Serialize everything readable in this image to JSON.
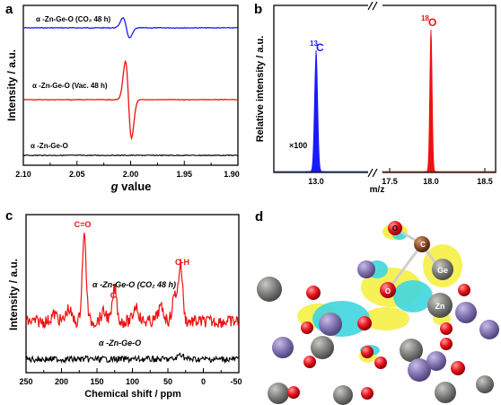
{
  "panels": {
    "a": {
      "letter": "a",
      "ylabel": "Intensity / a.u.",
      "xlabel_g": "g",
      "xlabel_value": " value",
      "xticks": [
        "2.10",
        "2.05",
        "2.00",
        "1.95",
        "1.90"
      ],
      "labels": {
        "co2": "α -Zn-Ge-O (CO₂ 48 h)",
        "vac": "α -Zn-Ge-O (Vac. 48 h)",
        "base": "α -Zn-Ge-O"
      }
    },
    "b": {
      "letter": "b",
      "ylabel": "Relative intensity / a.u.",
      "xlabel": "m/z",
      "xticks": [
        "13.0",
        "17.5",
        "18.0",
        "18.5"
      ],
      "peak13": "13",
      "peak13_el": "C",
      "peak18": "18",
      "peak18_el": "O",
      "scale": "×100"
    },
    "c": {
      "letter": "c",
      "ylabel": "Intensity / a.u.",
      "xlabel": "Chemical shift / ppm",
      "xticks": [
        "250",
        "200",
        "150",
        "100",
        "50",
        "0",
        "-50"
      ],
      "labels": {
        "co": "C=O",
        "c": "C",
        "ch": "C-H",
        "co2": "α -Zn-Ge-O (CO₂ 48 h)",
        "base": "α -Zn-Ge-O"
      }
    },
    "d": {
      "letter": "d",
      "atoms": {
        "o": "O",
        "c": "C",
        "ge": "Ge",
        "o2": "O",
        "zn": "Zn"
      }
    }
  },
  "colors": {
    "blue": "#1a1aff",
    "red": "#ee1111",
    "black": "#000000",
    "zn": "#7a7a78",
    "ge": "#8a7fb8",
    "o": "#e8141e",
    "c": "#8a4a2a",
    "yellow": "#f5ee3a",
    "cyan": "#3fd6e0"
  },
  "chart_data": [
    {
      "type": "line",
      "panel": "a",
      "xlim": [
        2.1,
        1.9
      ],
      "x_axis_reversed": true,
      "series": [
        {
          "name": "α -Zn-Ge-O (CO₂ 48 h)",
          "feature_center_g": 2.004
        },
        {
          "name": "α -Zn-Ge-O (Vac. 48 h)",
          "feature_center_g": 2.002
        },
        {
          "name": "α -Zn-Ge-O",
          "feature_center_g": null
        }
      ]
    },
    {
      "type": "bar",
      "panel": "b",
      "peaks": [
        {
          "mz": 13.0,
          "label": "13C",
          "scale": "×100"
        },
        {
          "mz": 18.0,
          "label": "18O"
        }
      ]
    },
    {
      "type": "line",
      "panel": "c",
      "xlim": [
        250,
        -50
      ],
      "x_axis_reversed": true,
      "peaks_ppm": [
        {
          "label": "C=O",
          "ppm": 168
        },
        {
          "label": "C",
          "ppm": 125
        },
        {
          "label": "C-H",
          "ppm": 32
        }
      ]
    }
  ]
}
